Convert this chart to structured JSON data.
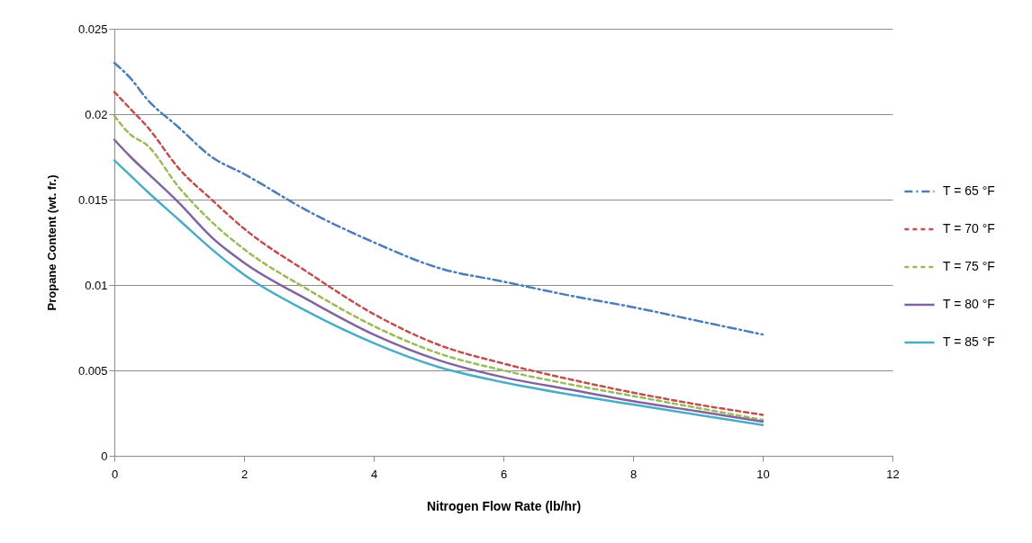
{
  "chart_data": {
    "type": "line",
    "xlabel": "Nitrogen Flow Rate (lb/hr)",
    "ylabel": "Propane Content (wt. fr.)",
    "x": [
      0,
      0.25,
      0.5,
      1,
      1.5,
      2,
      3,
      4,
      5,
      6,
      7,
      8,
      9,
      10
    ],
    "series": [
      {
        "name": "T = 65 °F",
        "color": "#4a7ebb",
        "line_style": "dashdot",
        "values": [
          0.023,
          0.0221,
          0.0209,
          0.0192,
          0.0175,
          0.0165,
          0.0143,
          0.0125,
          0.011,
          0.0102,
          0.0094,
          0.0087,
          0.0079,
          0.0071
        ]
      },
      {
        "name": "T = 70 °F",
        "color": "#c0504d",
        "line_style": "dashed",
        "values": [
          0.0213,
          0.0203,
          0.0193,
          0.0168,
          0.015,
          0.0133,
          0.0107,
          0.0083,
          0.0065,
          0.0054,
          0.0045,
          0.0037,
          0.003,
          0.0024
        ]
      },
      {
        "name": "T = 75 °F",
        "color": "#9bbb59",
        "line_style": "dashed",
        "values": [
          0.0199,
          0.0188,
          0.0182,
          0.0157,
          0.0137,
          0.0121,
          0.0097,
          0.0076,
          0.006,
          0.005,
          0.0042,
          0.0035,
          0.0028,
          0.0021
        ]
      },
      {
        "name": "T = 80 °F",
        "color": "#8064a2",
        "line_style": "solid",
        "values": [
          0.0185,
          0.0175,
          0.0166,
          0.0148,
          0.0128,
          0.0113,
          0.0091,
          0.0071,
          0.0056,
          0.0046,
          0.0039,
          0.0032,
          0.0026,
          0.002
        ]
      },
      {
        "name": "T = 85 °F",
        "color": "#4bacc6",
        "line_style": "solid",
        "values": [
          0.0173,
          0.0164,
          0.0155,
          0.0138,
          0.0121,
          0.0106,
          0.0084,
          0.0066,
          0.0052,
          0.0043,
          0.0036,
          0.003,
          0.0024,
          0.0018
        ]
      }
    ],
    "xlim": [
      0,
      12
    ],
    "xticks": [
      0,
      2,
      4,
      6,
      8,
      10,
      12
    ],
    "ylim": [
      0,
      0.025
    ],
    "yticks": [
      0,
      0.005,
      0.01,
      0.015,
      0.02,
      0.025
    ],
    "grid": "y",
    "legend": "right",
    "marker": "none"
  }
}
